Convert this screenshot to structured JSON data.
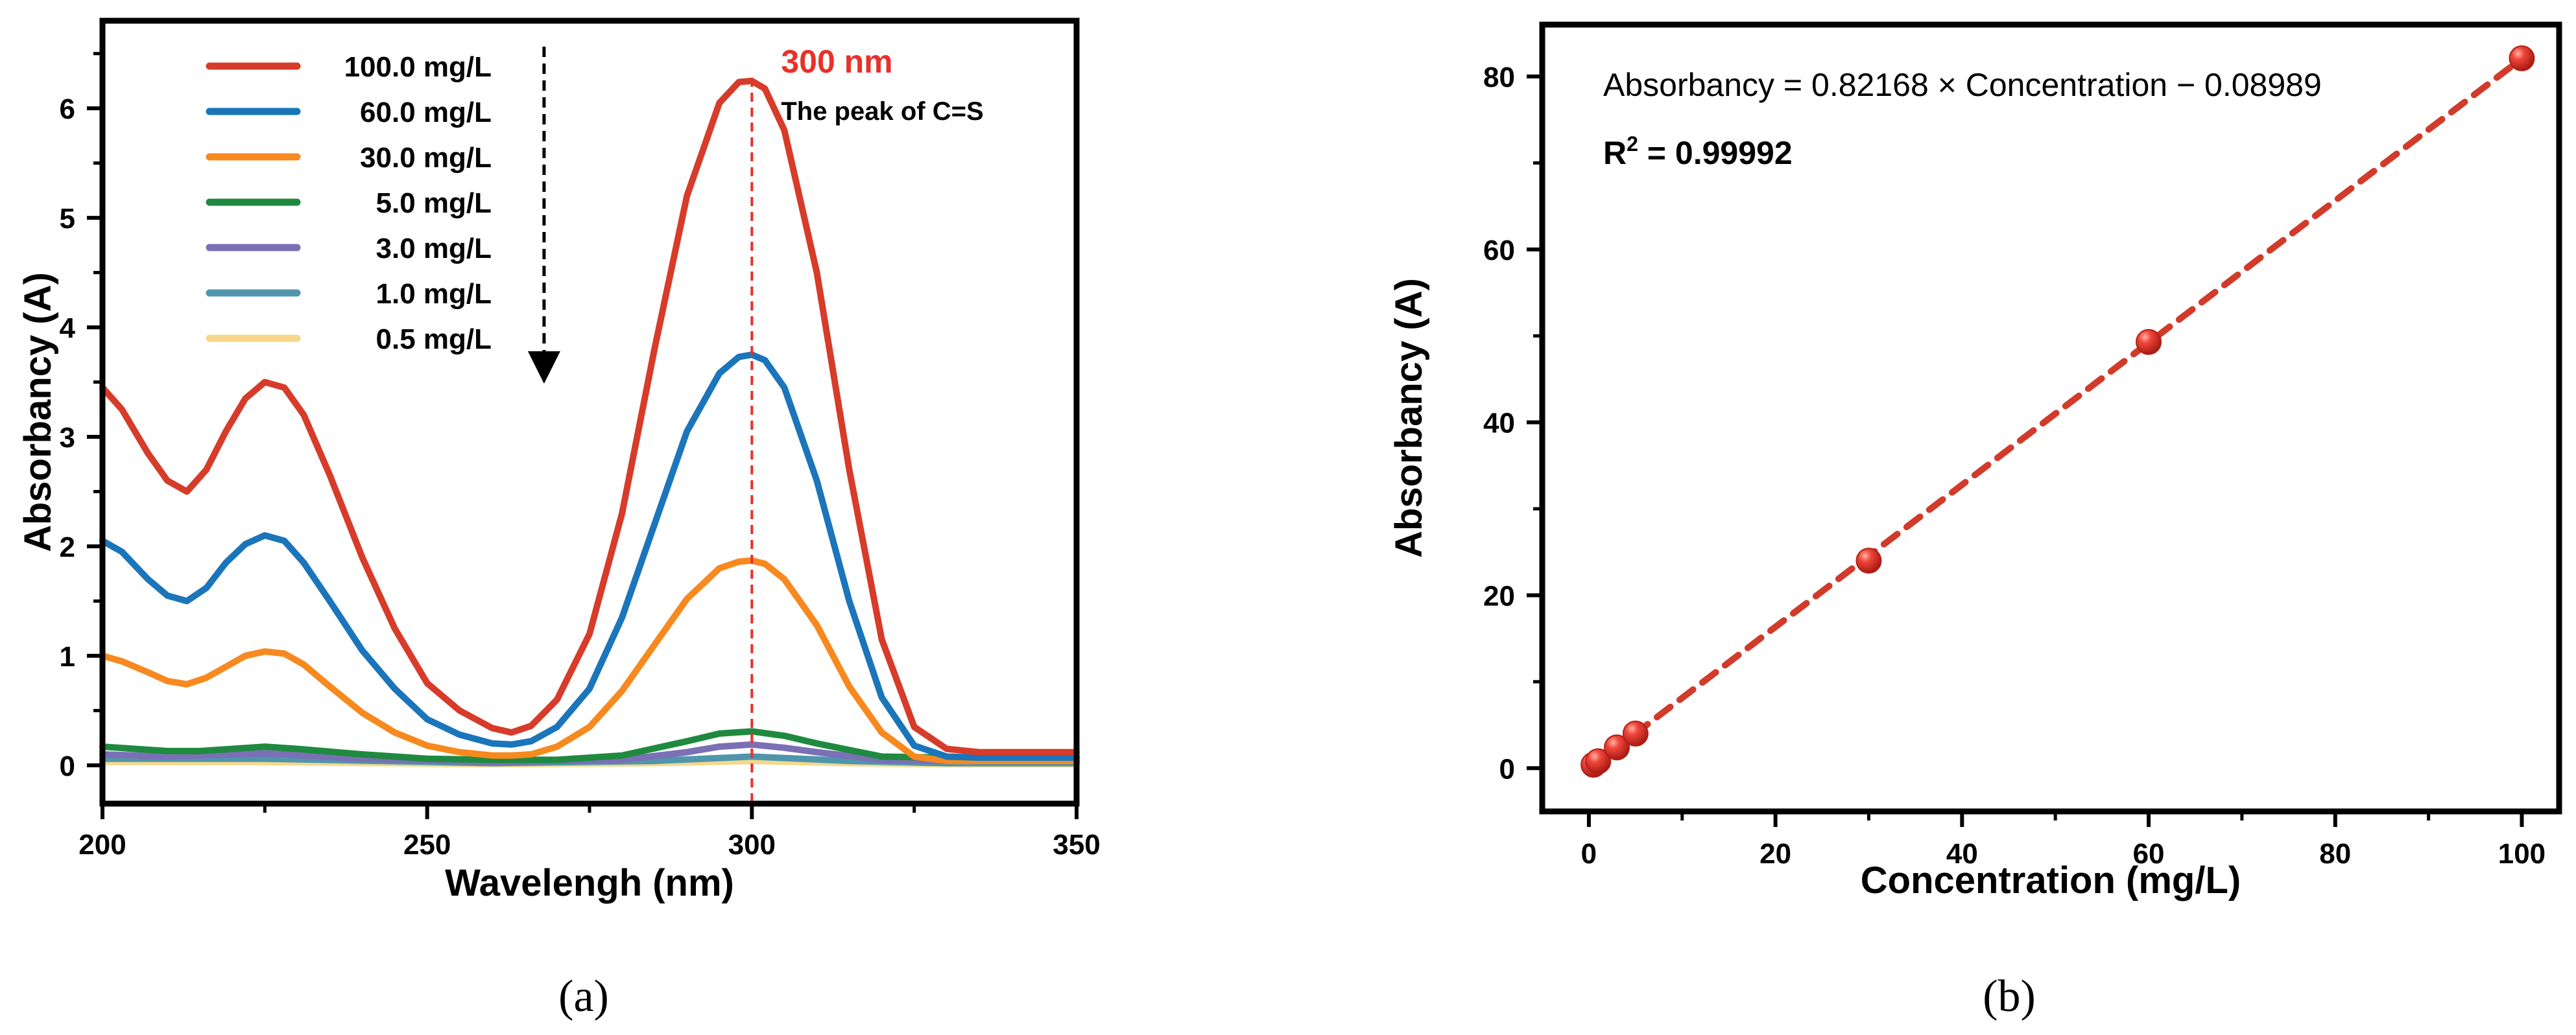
{
  "chart_data": [
    {
      "type": "line",
      "panel_label": "(a)",
      "xlabel": "Wavelengh (nm)",
      "ylabel": "Absorbancy (A)",
      "xlim": [
        200,
        350
      ],
      "ylim": [
        -0.35,
        6.8
      ],
      "xticks": [
        200,
        250,
        300,
        350
      ],
      "yticks": [
        0,
        1,
        2,
        3,
        4,
        5,
        6
      ],
      "legend_position": "top-left",
      "series": [
        {
          "name": "100.0 mg/L",
          "color": "#d73b2a",
          "x": [
            200,
            203,
            207,
            210,
            213,
            216,
            219,
            222,
            225,
            228,
            231,
            235,
            240,
            245,
            250,
            255,
            260,
            263,
            266,
            270,
            275,
            280,
            285,
            290,
            295,
            298,
            300,
            302,
            305,
            310,
            315,
            320,
            325,
            330,
            335,
            340,
            345,
            350
          ],
          "y": [
            3.45,
            3.25,
            2.85,
            2.6,
            2.5,
            2.7,
            3.05,
            3.35,
            3.5,
            3.45,
            3.2,
            2.65,
            1.9,
            1.25,
            0.75,
            0.5,
            0.34,
            0.3,
            0.36,
            0.6,
            1.2,
            2.3,
            3.8,
            5.2,
            6.05,
            6.24,
            6.25,
            6.18,
            5.8,
            4.5,
            2.7,
            1.15,
            0.35,
            0.15,
            0.12,
            0.12,
            0.12,
            0.12
          ]
        },
        {
          "name": "60.0 mg/L",
          "color": "#1b75bb",
          "x": [
            200,
            203,
            207,
            210,
            213,
            216,
            219,
            222,
            225,
            228,
            231,
            235,
            240,
            245,
            250,
            255,
            260,
            263,
            266,
            270,
            275,
            280,
            285,
            290,
            295,
            298,
            300,
            302,
            305,
            310,
            315,
            320,
            325,
            330,
            335,
            340,
            345,
            350
          ],
          "y": [
            2.05,
            1.95,
            1.7,
            1.55,
            1.5,
            1.62,
            1.85,
            2.02,
            2.1,
            2.05,
            1.85,
            1.5,
            1.05,
            0.7,
            0.42,
            0.28,
            0.2,
            0.19,
            0.22,
            0.35,
            0.7,
            1.35,
            2.2,
            3.05,
            3.58,
            3.73,
            3.75,
            3.7,
            3.45,
            2.6,
            1.5,
            0.62,
            0.18,
            0.08,
            0.07,
            0.07,
            0.07,
            0.07
          ]
        },
        {
          "name": "30.0 mg/L",
          "color": "#f7891f",
          "x": [
            200,
            203,
            207,
            210,
            213,
            216,
            219,
            222,
            225,
            228,
            231,
            235,
            240,
            245,
            250,
            255,
            260,
            263,
            266,
            270,
            275,
            280,
            285,
            290,
            295,
            298,
            300,
            302,
            305,
            310,
            315,
            320,
            325,
            330,
            335,
            340,
            345,
            350
          ],
          "y": [
            1.0,
            0.95,
            0.85,
            0.77,
            0.74,
            0.8,
            0.9,
            1.0,
            1.04,
            1.02,
            0.92,
            0.72,
            0.48,
            0.3,
            0.18,
            0.12,
            0.09,
            0.09,
            0.1,
            0.17,
            0.35,
            0.68,
            1.1,
            1.52,
            1.8,
            1.86,
            1.87,
            1.84,
            1.7,
            1.28,
            0.72,
            0.3,
            0.08,
            0.04,
            0.04,
            0.04,
            0.04,
            0.04
          ]
        },
        {
          "name": "5.0 mg/L",
          "color": "#1f8a3f",
          "x": [
            200,
            210,
            215,
            220,
            225,
            230,
            240,
            250,
            260,
            270,
            280,
            290,
            295,
            300,
            305,
            310,
            320,
            330,
            340,
            350
          ],
          "y": [
            0.17,
            0.13,
            0.13,
            0.15,
            0.17,
            0.15,
            0.1,
            0.06,
            0.05,
            0.05,
            0.09,
            0.22,
            0.29,
            0.31,
            0.27,
            0.2,
            0.08,
            0.07,
            0.07,
            0.07
          ]
        },
        {
          "name": "3.0 mg/L",
          "color": "#7b6fb6",
          "x": [
            200,
            210,
            225,
            240,
            260,
            280,
            290,
            295,
            300,
            305,
            310,
            320,
            330,
            350
          ],
          "y": [
            0.1,
            0.08,
            0.11,
            0.06,
            0.03,
            0.05,
            0.12,
            0.17,
            0.19,
            0.16,
            0.12,
            0.05,
            0.04,
            0.04
          ]
        },
        {
          "name": "1.0 mg/L",
          "color": "#4f96ad",
          "x": [
            200,
            225,
            260,
            285,
            300,
            315,
            330,
            350
          ],
          "y": [
            0.06,
            0.06,
            0.02,
            0.04,
            0.08,
            0.04,
            0.02,
            0.02
          ]
        },
        {
          "name": "0.5 mg/L",
          "color": "#f7d88a",
          "x": [
            200,
            225,
            260,
            285,
            300,
            315,
            330,
            350
          ],
          "y": [
            0.03,
            0.03,
            0.01,
            0.02,
            0.04,
            0.02,
            0.01,
            0.01
          ]
        }
      ],
      "annotations": {
        "marker_x": 300,
        "marker_label": "300 nm",
        "peak_label": "The peak of C=S",
        "marker_color": "#e8312b",
        "arrow_x": 268
      }
    },
    {
      "type": "scatter",
      "panel_label": "(b)",
      "xlabel": "Concentration (mg/L)",
      "ylabel": "Absorbancy (A)",
      "xlim": [
        -5,
        104
      ],
      "ylim": [
        -5,
        86
      ],
      "xticks": [
        0,
        20,
        40,
        60,
        80,
        100
      ],
      "yticks": [
        0,
        20,
        40,
        60,
        80
      ],
      "points": {
        "x": [
          0.5,
          1.0,
          3.0,
          5.0,
          30.0,
          60.0,
          100.0
        ],
        "y": [
          0.4,
          0.8,
          2.4,
          4.0,
          24.0,
          49.3,
          82.1
        ],
        "color": "#e2312a"
      },
      "fit": {
        "slope": 0.82168,
        "intercept": -0.08989,
        "x_range": [
          0,
          100
        ],
        "color": "#d23a2a"
      },
      "equation_parts": {
        "lhs": "Absorbancy = 0.82168 ",
        "times": "×",
        "mid": " Concentration ",
        "minus": "−",
        "rhs": " 0.08989"
      },
      "r2_parts": {
        "r": "R",
        "sup": "2",
        "value": " = 0.99992"
      }
    }
  ]
}
